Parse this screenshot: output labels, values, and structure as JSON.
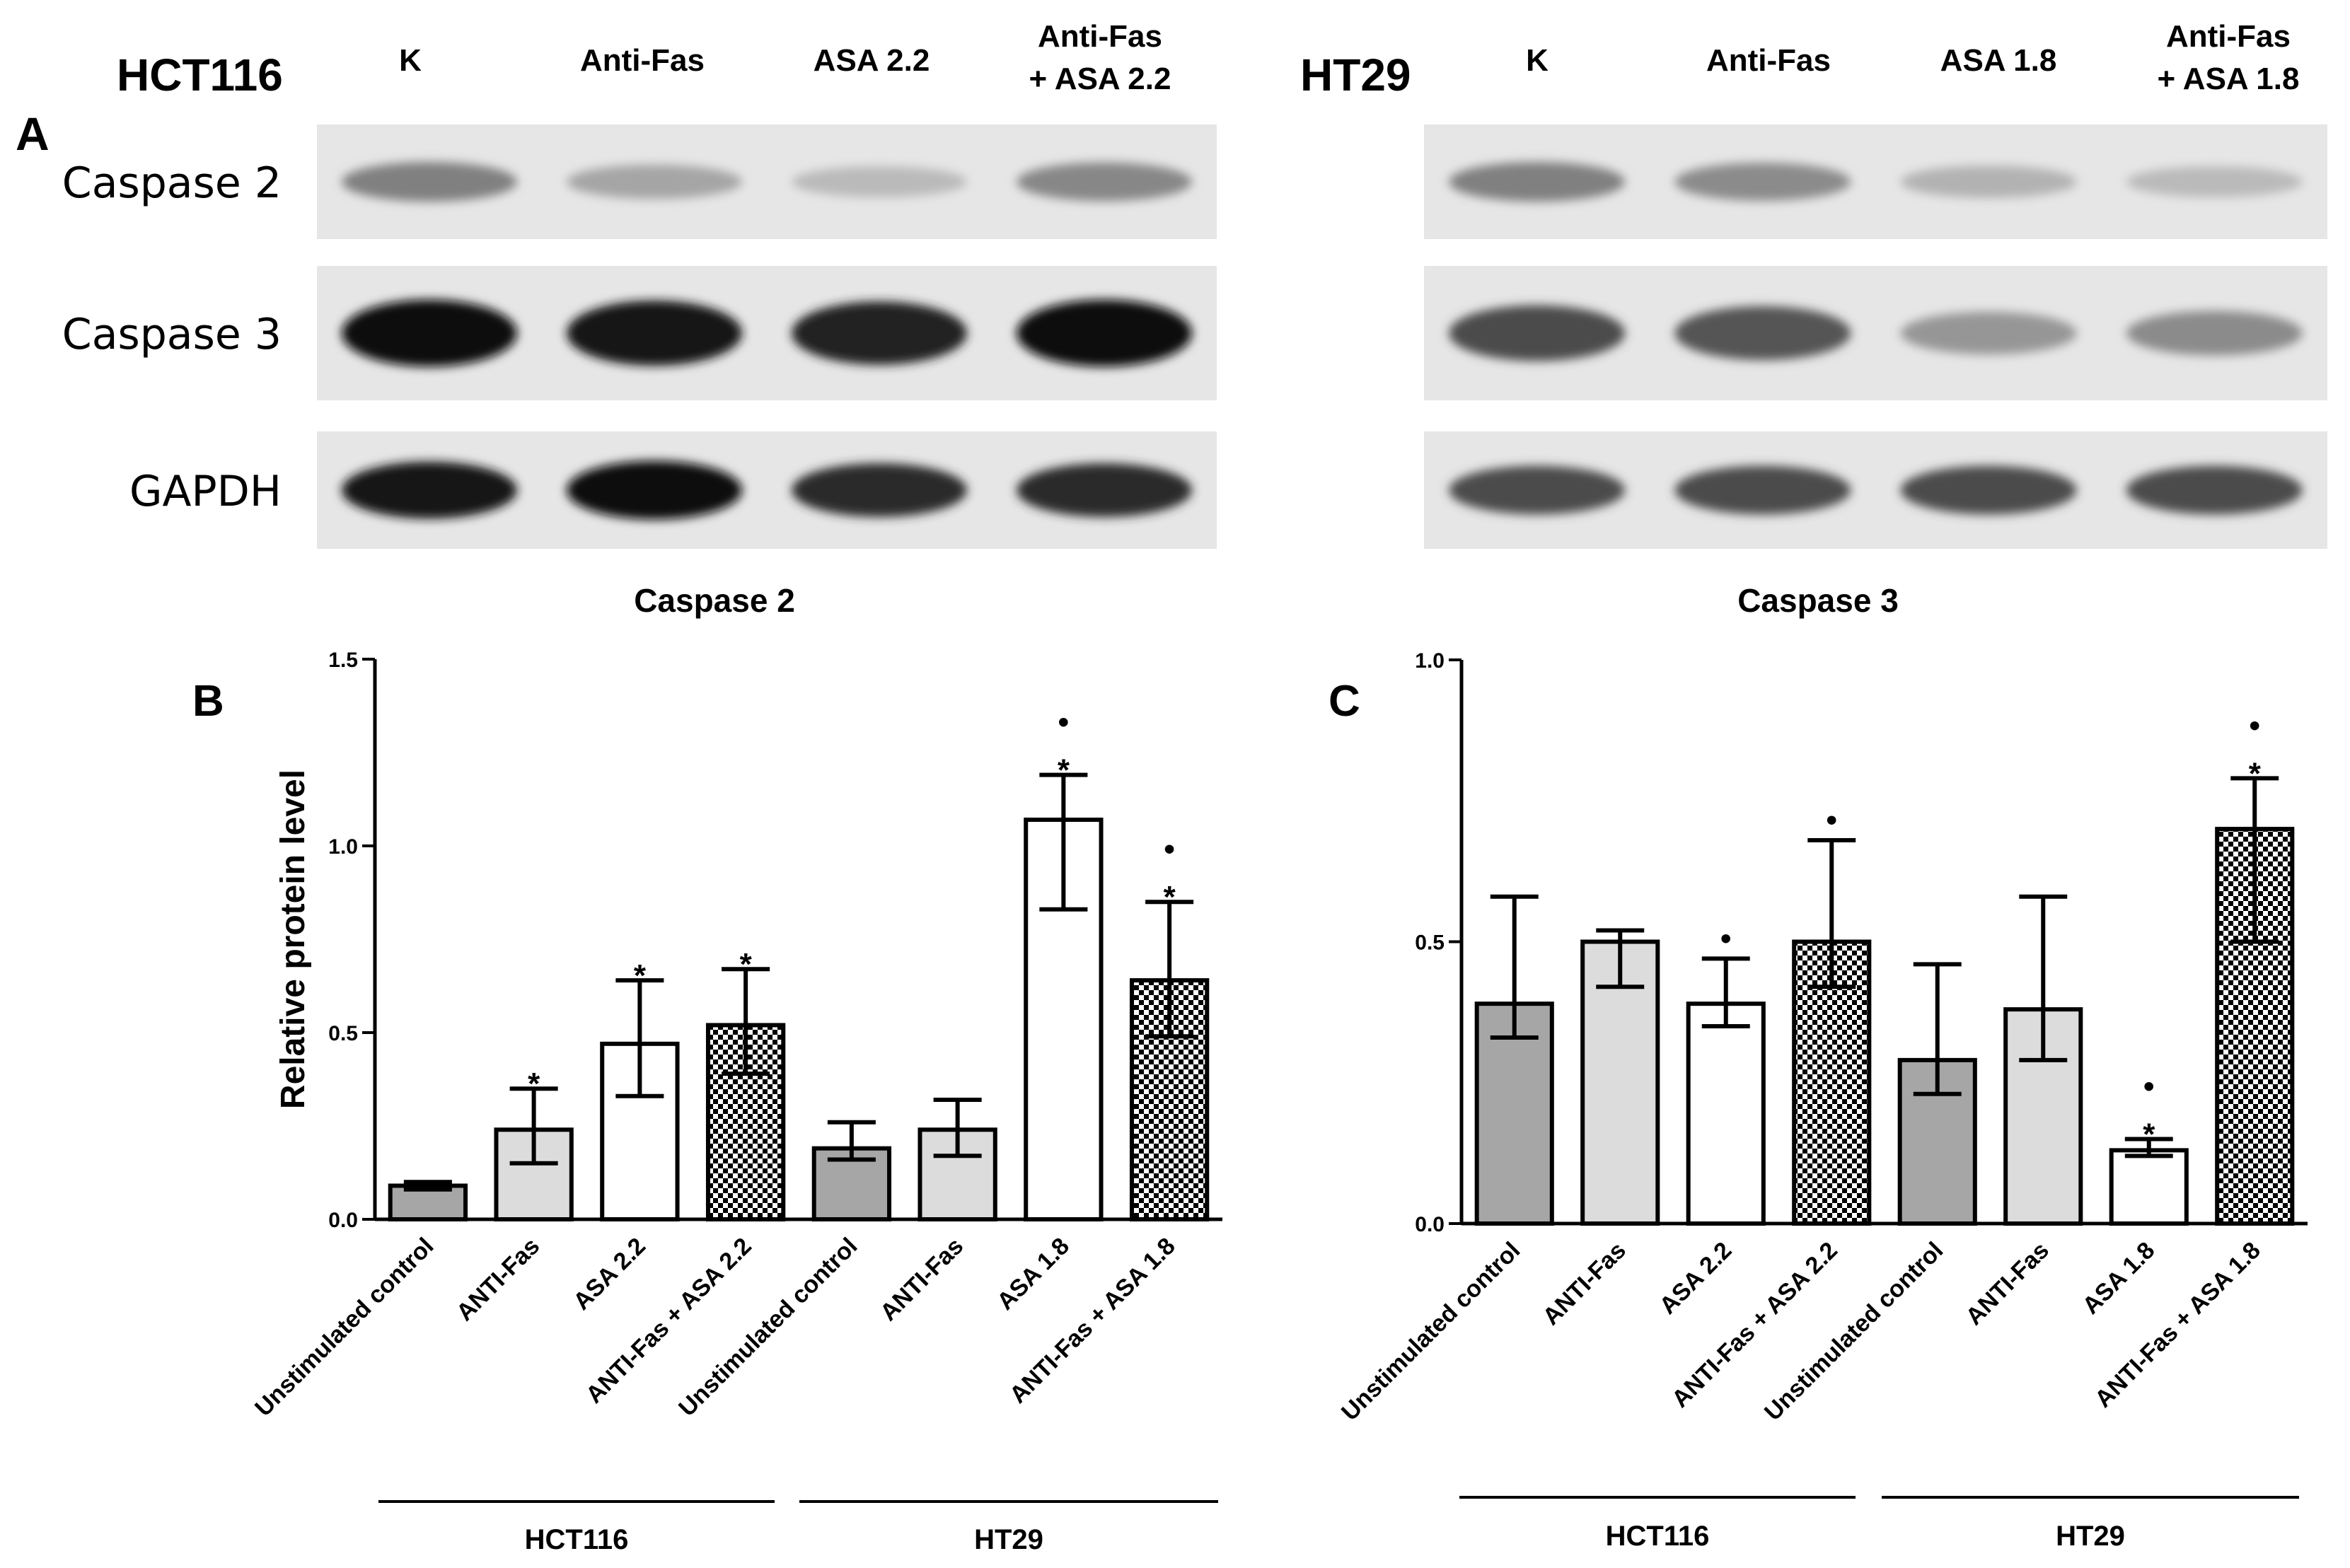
{
  "panel_labels": {
    "a": "A",
    "b": "B",
    "c": "C"
  },
  "blots": [
    {
      "cell_line": "HCT116",
      "lanes": [
        "K",
        "Anti-Fas",
        "ASA 2.2",
        "Anti-Fas\n+ ASA 2.2"
      ],
      "rows": [
        {
          "protein": "Caspase 2",
          "intensity": [
            0.45,
            0.28,
            0.18,
            0.42
          ]
        },
        {
          "protein": "Caspase 3",
          "intensity": [
            1.0,
            0.95,
            0.9,
            1.0
          ]
        },
        {
          "protein": "GAPDH",
          "intensity": [
            0.95,
            1.0,
            0.85,
            0.85
          ]
        }
      ]
    },
    {
      "cell_line": "HT29",
      "lanes": [
        "K",
        "Anti-Fas",
        "ASA 1.8",
        "Anti-Fas\n+ ASA 1.8"
      ],
      "rows": [
        {
          "protein": "Caspase 2",
          "intensity": [
            0.45,
            0.4,
            0.22,
            0.18
          ]
        },
        {
          "protein": "Caspase 3",
          "intensity": [
            0.7,
            0.65,
            0.35,
            0.4
          ]
        },
        {
          "protein": "GAPDH",
          "intensity": [
            0.7,
            0.7,
            0.7,
            0.7
          ]
        }
      ]
    }
  ],
  "chart_data": [
    {
      "type": "bar",
      "panel": "B",
      "title": "Caspase 2",
      "ylabel": "Relative protein level",
      "ylim": [
        0,
        1.5
      ],
      "yticks": [
        "0.0",
        "0.5",
        "1.0",
        "1.5"
      ],
      "categories": [
        "Unstimulated control",
        "ANTI-Fas",
        "ASA 2.2",
        "ANTI-Fas + ASA 2.2",
        "Unstimulated control",
        "ANTI-Fas",
        "ASA 1.8",
        "ANTI-Fas + ASA 1.8"
      ],
      "groups": [
        {
          "name": "HCT116",
          "indices": [
            0,
            1,
            2,
            3
          ]
        },
        {
          "name": "HT29",
          "indices": [
            4,
            5,
            6,
            7
          ]
        }
      ],
      "values": [
        0.09,
        0.24,
        0.47,
        0.52,
        0.19,
        0.24,
        1.07,
        0.64
      ],
      "err_low": [
        0.08,
        0.15,
        0.33,
        0.39,
        0.16,
        0.17,
        0.83,
        0.49
      ],
      "err_high": [
        0.1,
        0.35,
        0.64,
        0.67,
        0.26,
        0.32,
        1.19,
        0.85
      ],
      "fills": [
        "dark",
        "light",
        "white",
        "checker",
        "dark",
        "light",
        "white",
        "checker"
      ],
      "markers": [
        "",
        "*",
        "*",
        "*",
        "",
        "",
        "•\n*",
        "•\n*"
      ]
    },
    {
      "type": "bar",
      "panel": "C",
      "title": "Caspase 3",
      "ylabel": "",
      "ylim": [
        0,
        1.0
      ],
      "yticks": [
        "0.0",
        "0.5",
        "1.0"
      ],
      "categories": [
        "Unstimulated control",
        "ANTI-Fas",
        "ASA 2.2",
        "ANTI-Fas + ASA 2.2",
        "Unstimulated control",
        "ANTI-Fas",
        "ASA 1.8",
        "ANTI-Fas + ASA 1.8"
      ],
      "groups": [
        {
          "name": "HCT116",
          "indices": [
            0,
            1,
            2,
            3
          ]
        },
        {
          "name": "HT29",
          "indices": [
            4,
            5,
            6,
            7
          ]
        }
      ],
      "values": [
        0.39,
        0.5,
        0.39,
        0.5,
        0.29,
        0.38,
        0.13,
        0.7
      ],
      "err_low": [
        0.33,
        0.42,
        0.35,
        0.42,
        0.23,
        0.29,
        0.12,
        0.5
      ],
      "err_high": [
        0.58,
        0.52,
        0.47,
        0.68,
        0.46,
        0.58,
        0.15,
        0.79
      ],
      "fills": [
        "dark",
        "light",
        "white",
        "checker",
        "dark",
        "light",
        "white",
        "checker"
      ],
      "markers": [
        "",
        "",
        "•",
        "•",
        "",
        "",
        "•\n*",
        "•\n*"
      ]
    }
  ],
  "colors": {
    "dark": "#a6a6a6",
    "light": "#dcdcdc",
    "white": "#ffffff",
    "checker_a": "#000000",
    "checker_b": "#ffffff",
    "blot_bg": "#e6e6e6",
    "band": "#101010"
  }
}
